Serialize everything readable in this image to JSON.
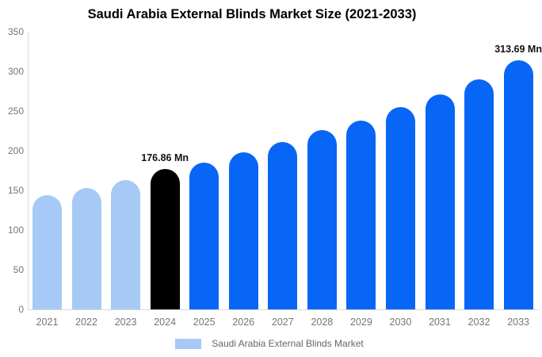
{
  "title": "Saudi Arabia External Blinds Market Size (2021-2033)",
  "legend": {
    "label": "Saudi Arabia External Blinds Market",
    "swatch_color": "#a7c9f6"
  },
  "colors": {
    "historical_bar": "#a7c9f6",
    "highlight_bar": "#000000",
    "forecast_bar": "#0866f7",
    "axis_line": "#dcdcdc",
    "tick_text": "#757575",
    "legend_text": "#666666",
    "annotation_text": "#111111"
  },
  "chart_data": {
    "type": "bar",
    "title": "Saudi Arabia External Blinds Market Size (2021-2033)",
    "categories": [
      "2021",
      "2022",
      "2023",
      "2024",
      "2025",
      "2026",
      "2027",
      "2028",
      "2029",
      "2030",
      "2031",
      "2032",
      "2033"
    ],
    "values": [
      144,
      153,
      163,
      176.86,
      185,
      198,
      211,
      226,
      238,
      255,
      271,
      290,
      313.69
    ],
    "bar_colors": [
      "#a7c9f6",
      "#a7c9f6",
      "#a7c9f6",
      "#000000",
      "#0866f7",
      "#0866f7",
      "#0866f7",
      "#0866f7",
      "#0866f7",
      "#0866f7",
      "#0866f7",
      "#0866f7",
      "#0866f7"
    ],
    "unit": "Mn",
    "xlabel": "",
    "ylabel": "",
    "yticks": [
      0,
      50,
      100,
      150,
      200,
      250,
      300,
      350
    ],
    "ylim": [
      0,
      350
    ],
    "grid": false,
    "legend_position": "bottom",
    "legend_entries": [
      "Saudi Arabia External Blinds Market"
    ],
    "annotations": [
      {
        "category": "2024",
        "text": "176.86 Mn"
      },
      {
        "category": "2033",
        "text": "313.69 Mn"
      }
    ]
  }
}
